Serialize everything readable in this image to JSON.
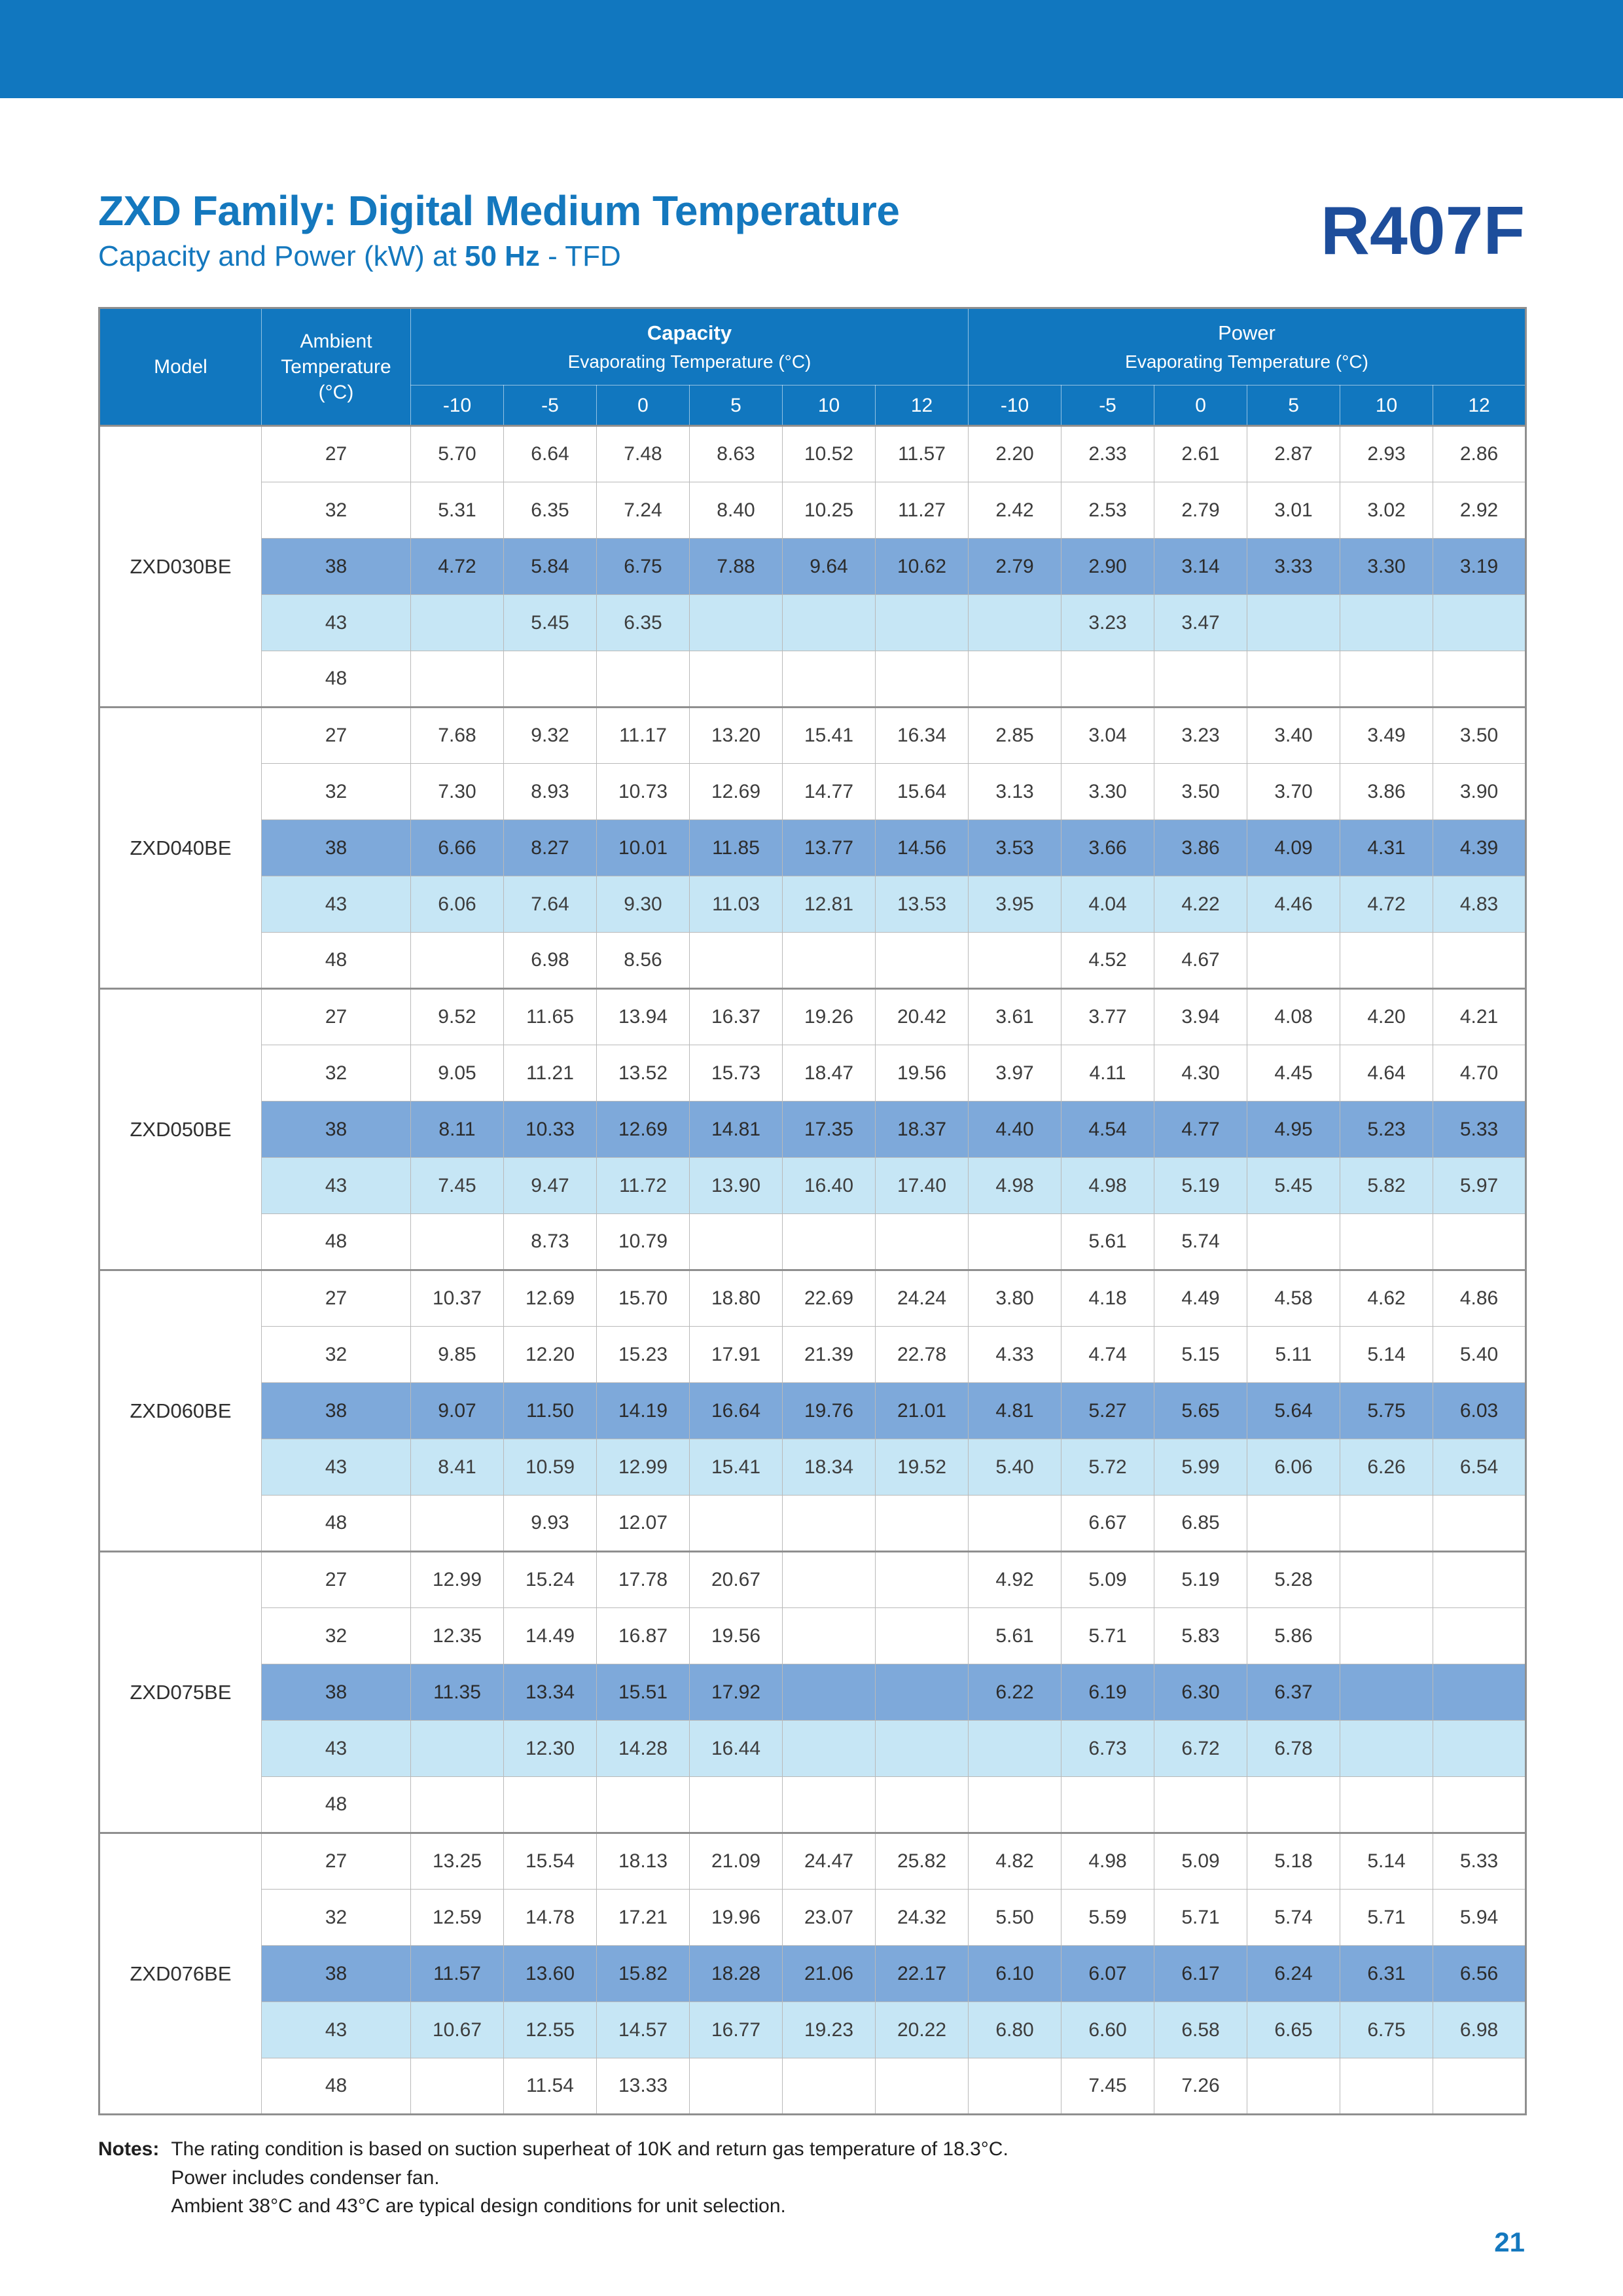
{
  "page": {
    "title": "ZXD Family: Digital Medium Temperature",
    "subtitle": {
      "prefix": "Capacity and Power (kW) at ",
      "bold": "50 Hz",
      "suffix": " - TFD"
    },
    "refrigerant": "R407F",
    "page_number": "21"
  },
  "colors": {
    "header_blue": "#1177bf",
    "row_38_blue": "#7ea9da",
    "row_43_light_blue": "#c6e6f5",
    "refrigerant_dark_blue": "#1d4d9b"
  },
  "table": {
    "headers": {
      "model": "Model",
      "ambient": "Ambient Temperature (°C)",
      "capacity_title": "Capacity",
      "capacity_subtitle": "Evaporating Temperature (°C)",
      "power_title": "Power",
      "power_subtitle": "Evaporating Temperature (°C)",
      "evap_temps": [
        "-10",
        "-5",
        "0",
        "5",
        "10",
        "12"
      ]
    },
    "models": [
      {
        "name": "ZXD030BE",
        "rows": [
          {
            "ambient": "27",
            "capacity": [
              "5.70",
              "6.64",
              "7.48",
              "8.63",
              "10.52",
              "11.57"
            ],
            "power": [
              "2.20",
              "2.33",
              "2.61",
              "2.87",
              "2.93",
              "2.86"
            ]
          },
          {
            "ambient": "32",
            "capacity": [
              "5.31",
              "6.35",
              "7.24",
              "8.40",
              "10.25",
              "11.27"
            ],
            "power": [
              "2.42",
              "2.53",
              "2.79",
              "3.01",
              "3.02",
              "2.92"
            ]
          },
          {
            "ambient": "38",
            "capacity": [
              "4.72",
              "5.84",
              "6.75",
              "7.88",
              "9.64",
              "10.62"
            ],
            "power": [
              "2.79",
              "2.90",
              "3.14",
              "3.33",
              "3.30",
              "3.19"
            ]
          },
          {
            "ambient": "43",
            "capacity": [
              "",
              "5.45",
              "6.35",
              "",
              "",
              ""
            ],
            "power": [
              "",
              "3.23",
              "3.47",
              "",
              "",
              ""
            ]
          },
          {
            "ambient": "48",
            "capacity": [
              "",
              "",
              "",
              "",
              "",
              ""
            ],
            "power": [
              "",
              "",
              "",
              "",
              "",
              ""
            ]
          }
        ]
      },
      {
        "name": "ZXD040BE",
        "rows": [
          {
            "ambient": "27",
            "capacity": [
              "7.68",
              "9.32",
              "11.17",
              "13.20",
              "15.41",
              "16.34"
            ],
            "power": [
              "2.85",
              "3.04",
              "3.23",
              "3.40",
              "3.49",
              "3.50"
            ]
          },
          {
            "ambient": "32",
            "capacity": [
              "7.30",
              "8.93",
              "10.73",
              "12.69",
              "14.77",
              "15.64"
            ],
            "power": [
              "3.13",
              "3.30",
              "3.50",
              "3.70",
              "3.86",
              "3.90"
            ]
          },
          {
            "ambient": "38",
            "capacity": [
              "6.66",
              "8.27",
              "10.01",
              "11.85",
              "13.77",
              "14.56"
            ],
            "power": [
              "3.53",
              "3.66",
              "3.86",
              "4.09",
              "4.31",
              "4.39"
            ]
          },
          {
            "ambient": "43",
            "capacity": [
              "6.06",
              "7.64",
              "9.30",
              "11.03",
              "12.81",
              "13.53"
            ],
            "power": [
              "3.95",
              "4.04",
              "4.22",
              "4.46",
              "4.72",
              "4.83"
            ]
          },
          {
            "ambient": "48",
            "capacity": [
              "",
              "6.98",
              "8.56",
              "",
              "",
              ""
            ],
            "power": [
              "",
              "4.52",
              "4.67",
              "",
              "",
              ""
            ]
          }
        ]
      },
      {
        "name": "ZXD050BE",
        "rows": [
          {
            "ambient": "27",
            "capacity": [
              "9.52",
              "11.65",
              "13.94",
              "16.37",
              "19.26",
              "20.42"
            ],
            "power": [
              "3.61",
              "3.77",
              "3.94",
              "4.08",
              "4.20",
              "4.21"
            ]
          },
          {
            "ambient": "32",
            "capacity": [
              "9.05",
              "11.21",
              "13.52",
              "15.73",
              "18.47",
              "19.56"
            ],
            "power": [
              "3.97",
              "4.11",
              "4.30",
              "4.45",
              "4.64",
              "4.70"
            ]
          },
          {
            "ambient": "38",
            "capacity": [
              "8.11",
              "10.33",
              "12.69",
              "14.81",
              "17.35",
              "18.37"
            ],
            "power": [
              "4.40",
              "4.54",
              "4.77",
              "4.95",
              "5.23",
              "5.33"
            ]
          },
          {
            "ambient": "43",
            "capacity": [
              "7.45",
              "9.47",
              "11.72",
              "13.90",
              "16.40",
              "17.40"
            ],
            "power": [
              "4.98",
              "4.98",
              "5.19",
              "5.45",
              "5.82",
              "5.97"
            ]
          },
          {
            "ambient": "48",
            "capacity": [
              "",
              "8.73",
              "10.79",
              "",
              "",
              ""
            ],
            "power": [
              "",
              "5.61",
              "5.74",
              "",
              "",
              ""
            ]
          }
        ]
      },
      {
        "name": "ZXD060BE",
        "rows": [
          {
            "ambient": "27",
            "capacity": [
              "10.37",
              "12.69",
              "15.70",
              "18.80",
              "22.69",
              "24.24"
            ],
            "power": [
              "3.80",
              "4.18",
              "4.49",
              "4.58",
              "4.62",
              "4.86"
            ]
          },
          {
            "ambient": "32",
            "capacity": [
              "9.85",
              "12.20",
              "15.23",
              "17.91",
              "21.39",
              "22.78"
            ],
            "power": [
              "4.33",
              "4.74",
              "5.15",
              "5.11",
              "5.14",
              "5.40"
            ]
          },
          {
            "ambient": "38",
            "capacity": [
              "9.07",
              "11.50",
              "14.19",
              "16.64",
              "19.76",
              "21.01"
            ],
            "power": [
              "4.81",
              "5.27",
              "5.65",
              "5.64",
              "5.75",
              "6.03"
            ]
          },
          {
            "ambient": "43",
            "capacity": [
              "8.41",
              "10.59",
              "12.99",
              "15.41",
              "18.34",
              "19.52"
            ],
            "power": [
              "5.40",
              "5.72",
              "5.99",
              "6.06",
              "6.26",
              "6.54"
            ]
          },
          {
            "ambient": "48",
            "capacity": [
              "",
              "9.93",
              "12.07",
              "",
              "",
              ""
            ],
            "power": [
              "",
              "6.67",
              "6.85",
              "",
              "",
              ""
            ]
          }
        ]
      },
      {
        "name": "ZXD075BE",
        "rows": [
          {
            "ambient": "27",
            "capacity": [
              "12.99",
              "15.24",
              "17.78",
              "20.67",
              "",
              ""
            ],
            "power": [
              "4.92",
              "5.09",
              "5.19",
              "5.28",
              "",
              ""
            ]
          },
          {
            "ambient": "32",
            "capacity": [
              "12.35",
              "14.49",
              "16.87",
              "19.56",
              "",
              ""
            ],
            "power": [
              "5.61",
              "5.71",
              "5.83",
              "5.86",
              "",
              ""
            ]
          },
          {
            "ambient": "38",
            "capacity": [
              "11.35",
              "13.34",
              "15.51",
              "17.92",
              "",
              ""
            ],
            "power": [
              "6.22",
              "6.19",
              "6.30",
              "6.37",
              "",
              ""
            ]
          },
          {
            "ambient": "43",
            "capacity": [
              "",
              "12.30",
              "14.28",
              "16.44",
              "",
              ""
            ],
            "power": [
              "",
              "6.73",
              "6.72",
              "6.78",
              "",
              ""
            ]
          },
          {
            "ambient": "48",
            "capacity": [
              "",
              "",
              "",
              "",
              "",
              ""
            ],
            "power": [
              "",
              "",
              "",
              "",
              "",
              ""
            ]
          }
        ]
      },
      {
        "name": "ZXD076BE",
        "rows": [
          {
            "ambient": "27",
            "capacity": [
              "13.25",
              "15.54",
              "18.13",
              "21.09",
              "24.47",
              "25.82"
            ],
            "power": [
              "4.82",
              "4.98",
              "5.09",
              "5.18",
              "5.14",
              "5.33"
            ]
          },
          {
            "ambient": "32",
            "capacity": [
              "12.59",
              "14.78",
              "17.21",
              "19.96",
              "23.07",
              "24.32"
            ],
            "power": [
              "5.50",
              "5.59",
              "5.71",
              "5.74",
              "5.71",
              "5.94"
            ]
          },
          {
            "ambient": "38",
            "capacity": [
              "11.57",
              "13.60",
              "15.82",
              "18.28",
              "21.06",
              "22.17"
            ],
            "power": [
              "6.10",
              "6.07",
              "6.17",
              "6.24",
              "6.31",
              "6.56"
            ]
          },
          {
            "ambient": "43",
            "capacity": [
              "10.67",
              "12.55",
              "14.57",
              "16.77",
              "19.23",
              "20.22"
            ],
            "power": [
              "6.80",
              "6.60",
              "6.58",
              "6.65",
              "6.75",
              "6.98"
            ]
          },
          {
            "ambient": "48",
            "capacity": [
              "",
              "11.54",
              "13.33",
              "",
              "",
              ""
            ],
            "power": [
              "",
              "7.45",
              "7.26",
              "",
              "",
              ""
            ]
          }
        ]
      }
    ]
  },
  "notes": {
    "label": "Notes:",
    "lines": [
      "The rating condition is based on suction superheat of 10K and return gas temperature of 18.3°C.",
      "Power includes condenser fan.",
      "Ambient 38°C and 43°C are typical design conditions for unit selection."
    ]
  }
}
